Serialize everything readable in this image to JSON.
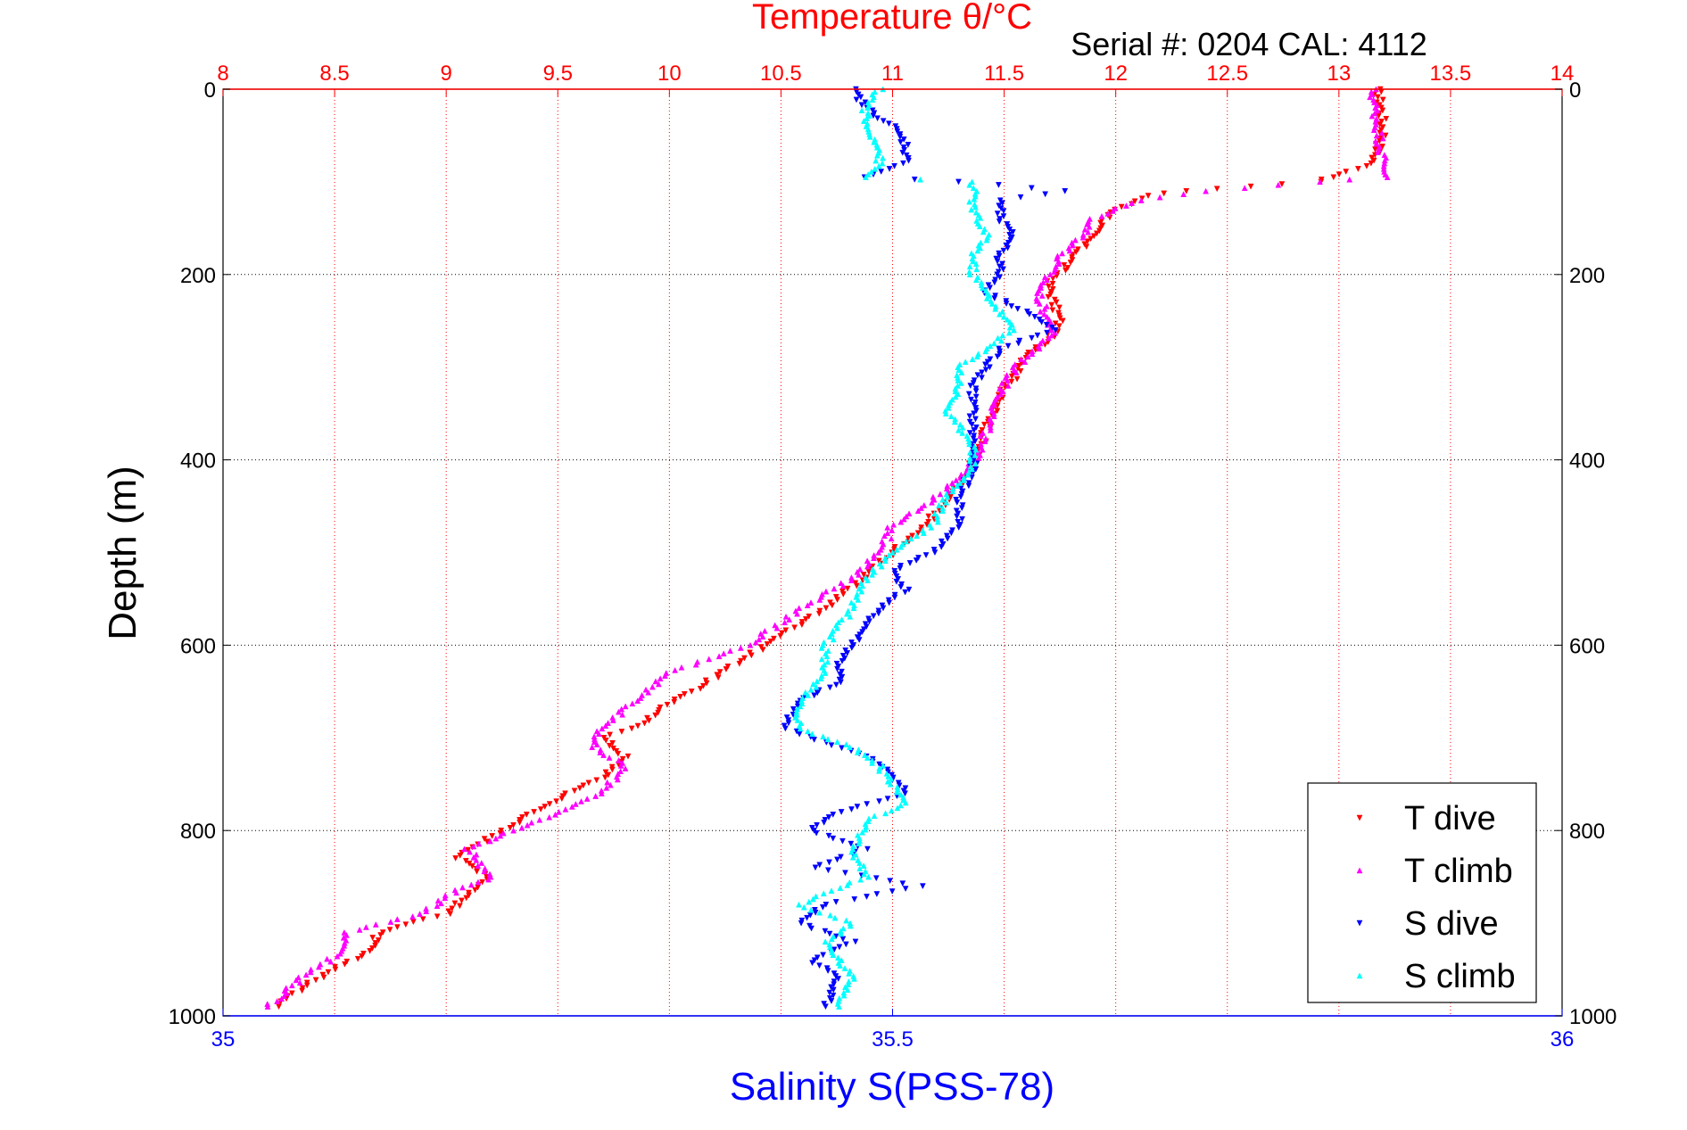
{
  "chart_data": {
    "type": "scatter",
    "title": "Temperature θ/°C",
    "subtitle": "Serial #: 0204  CAL: 4112",
    "ylabel": "Depth (m)",
    "xlabel_bottom": "Salinity S(PSS-78)",
    "temperature_axis": {
      "range": [
        8,
        14
      ],
      "ticks": [
        8,
        8.5,
        9,
        9.5,
        10,
        10.5,
        11,
        11.5,
        12,
        12.5,
        13,
        13.5,
        14
      ],
      "tick_labels": [
        "8",
        "8.5",
        "9",
        "9.5",
        "10",
        "10.5",
        "11",
        "11.5",
        "12",
        "12.5",
        "13",
        "13.5",
        "14"
      ],
      "color": "#ff0000"
    },
    "salinity_axis": {
      "range": [
        35,
        36
      ],
      "ticks": [
        35,
        35.5,
        36
      ],
      "tick_labels": [
        "35",
        "35.5",
        "36"
      ],
      "color": "#0000ff"
    },
    "depth_axis": {
      "range": [
        0,
        1000
      ],
      "reversed": true,
      "ticks": [
        0,
        200,
        400,
        600,
        800,
        1000
      ],
      "tick_labels": [
        "0",
        "200",
        "400",
        "600",
        "800",
        "1000"
      ]
    },
    "grid": true,
    "legend_position": "bottom-right",
    "series": [
      {
        "name": "T dive",
        "axis": "temperature",
        "color": "#ff0000",
        "depth": [
          0,
          20,
          50,
          80,
          95,
          100,
          105,
          110,
          115,
          130,
          150,
          170,
          190,
          210,
          230,
          250,
          270,
          290,
          310,
          330,
          350,
          380,
          410,
          440,
          470,
          500,
          530,
          560,
          590,
          620,
          650,
          670,
          690,
          700,
          720,
          740,
          760,
          780,
          800,
          830,
          850,
          870,
          890,
          910,
          930,
          950,
          970,
          990
        ],
        "value": [
          13.17,
          13.19,
          13.2,
          13.15,
          12.98,
          12.9,
          12.6,
          12.3,
          12.15,
          12.0,
          11.92,
          11.85,
          11.78,
          11.7,
          11.72,
          11.75,
          11.7,
          11.6,
          11.55,
          11.48,
          11.45,
          11.4,
          11.35,
          11.25,
          11.15,
          11.0,
          10.85,
          10.7,
          10.5,
          10.3,
          10.1,
          9.95,
          9.85,
          9.7,
          9.8,
          9.72,
          9.55,
          9.4,
          9.25,
          9.05,
          9.2,
          9.1,
          9.0,
          8.7,
          8.65,
          8.5,
          8.35,
          8.25
        ]
      },
      {
        "name": "T climb",
        "axis": "temperature",
        "color": "#ff00ff",
        "depth": [
          0,
          20,
          50,
          80,
          95,
          100,
          110,
          120,
          140,
          160,
          180,
          200,
          220,
          240,
          260,
          280,
          300,
          320,
          350,
          380,
          410,
          440,
          470,
          500,
          530,
          560,
          600,
          630,
          660,
          690,
          710,
          730,
          760,
          780,
          800,
          820,
          850,
          870,
          890,
          910,
          930,
          950,
          970,
          990
        ],
        "value": [
          13.15,
          13.16,
          13.18,
          13.2,
          13.22,
          12.9,
          12.4,
          12.1,
          11.9,
          11.85,
          11.75,
          11.7,
          11.65,
          11.68,
          11.72,
          11.65,
          11.55,
          11.5,
          11.45,
          11.4,
          11.35,
          11.2,
          11.0,
          10.95,
          10.8,
          10.6,
          10.35,
          10.0,
          9.85,
          9.7,
          9.65,
          9.8,
          9.7,
          9.5,
          9.3,
          9.1,
          9.2,
          9.0,
          8.9,
          8.55,
          8.55,
          8.4,
          8.3,
          8.2
        ]
      },
      {
        "name": "S dive",
        "axis": "salinity",
        "color": "#0000ff",
        "depth": [
          0,
          20,
          40,
          60,
          80,
          95,
          100,
          110,
          120,
          140,
          160,
          180,
          200,
          220,
          240,
          260,
          280,
          300,
          320,
          350,
          380,
          410,
          440,
          470,
          500,
          520,
          540,
          560,
          580,
          600,
          620,
          640,
          660,
          690,
          720,
          740,
          760,
          780,
          800,
          820,
          840,
          860,
          880,
          900,
          920,
          940,
          960,
          990
        ],
        "value": [
          35.47,
          35.48,
          35.5,
          35.51,
          35.51,
          35.48,
          35.55,
          35.63,
          35.58,
          35.58,
          35.59,
          35.58,
          35.58,
          35.57,
          35.6,
          35.62,
          35.58,
          35.57,
          35.56,
          35.56,
          35.56,
          35.56,
          35.55,
          35.55,
          35.53,
          35.5,
          35.51,
          35.49,
          35.48,
          35.47,
          35.46,
          35.46,
          35.43,
          35.42,
          35.48,
          35.5,
          35.51,
          35.46,
          35.44,
          35.48,
          35.44,
          35.52,
          35.45,
          35.43,
          35.47,
          35.44,
          35.46,
          35.45
        ]
      },
      {
        "name": "S climb",
        "axis": "salinity",
        "color": "#00ffff",
        "depth": [
          0,
          20,
          40,
          60,
          80,
          95,
          100,
          110,
          130,
          160,
          180,
          200,
          220,
          240,
          260,
          280,
          300,
          320,
          350,
          380,
          410,
          440,
          470,
          500,
          530,
          560,
          600,
          630,
          660,
          690,
          710,
          730,
          750,
          770,
          790,
          820,
          850,
          880,
          900,
          920,
          940,
          960,
          990
        ],
        "value": [
          35.49,
          35.48,
          35.48,
          35.49,
          35.49,
          35.48,
          35.56,
          35.56,
          35.56,
          35.57,
          35.56,
          35.56,
          35.57,
          35.58,
          35.59,
          35.57,
          35.55,
          35.55,
          35.54,
          35.56,
          35.56,
          35.54,
          35.53,
          35.5,
          35.48,
          35.47,
          35.45,
          35.45,
          35.43,
          35.43,
          35.47,
          35.49,
          35.5,
          35.51,
          35.48,
          35.47,
          35.48,
          35.43,
          35.47,
          35.45,
          35.46,
          35.47,
          35.46
        ]
      }
    ]
  }
}
